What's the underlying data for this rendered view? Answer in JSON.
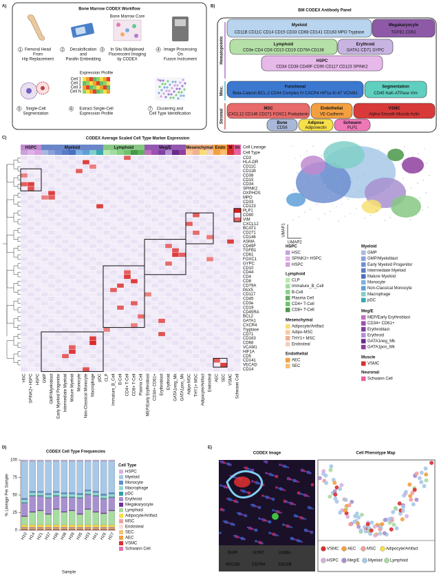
{
  "panel_a": {
    "label": "A)",
    "title": "Bone Marrow CODEX Workflow",
    "core_label": "Bone Marrow Core",
    "profile_label": "Expression Profile",
    "cells": [
      "Cell 1",
      "Cell 2",
      "Cell 3",
      "Cell N"
    ],
    "steps": [
      {
        "number": 1,
        "lines": [
          "Femoral Head",
          "From",
          "Hip Replacement"
        ]
      },
      {
        "number": 2,
        "lines": [
          "Decalcification",
          "and",
          "Parafin Embedding"
        ]
      },
      {
        "number": 3,
        "lines": [
          "In Situ Multiplexed",
          "Fluorescent Imaging",
          "by CODEX"
        ]
      },
      {
        "number": 4,
        "lines": [
          "Image Processing",
          "On",
          "Fusion Instrument"
        ]
      },
      {
        "number": 5,
        "lines": [
          "Single-Cell",
          "Segmentation"
        ]
      },
      {
        "number": 6,
        "lines": [
          "Extract Single-Cell",
          "Expression Profile"
        ]
      },
      {
        "number": 7,
        "lines": [
          "Clustering and",
          "Cell Type Identification"
        ]
      }
    ]
  },
  "panel_b": {
    "label": "B)",
    "title": "BM CODEX Antibody Panel",
    "groups": [
      {
        "label": "Hematopoietic",
        "color": "#9b4fc0"
      },
      {
        "label": "Misc.",
        "color": "#2a9fc9"
      },
      {
        "label": "Stromal",
        "color": "#c0392b"
      }
    ],
    "boxes": [
      {
        "title": "Myeloid",
        "markers": "CD11B CD11C CD14 CD15 CD33 CD68 CD141 CD163 MPO Tryptase",
        "color": "#b9d4ee"
      },
      {
        "title": "Megakaryocyte",
        "markers": "TGFB1 CD61",
        "color": "#8e5aa8"
      },
      {
        "title": "Lymphoid",
        "markers": "CD3e CD4 CD8 CD10 CD19 CD79A CD138",
        "color": "#b5e0a8"
      },
      {
        "title": "Erythroid",
        "markers": "GATA1 CD71 GYPC",
        "color": "#c8b4e0"
      },
      {
        "title": "HSPC",
        "markers": "CD34 CD38 CD49F CD90 CD117 CD123 SPINK2",
        "color": "#e7b8ea"
      },
      {
        "title": "Functional",
        "markers": "Beta-Catenin BCL-2 CD44 Complex IV CXCR4 HIF1α Ki-67 VCAM1",
        "color": "#3b78d0"
      },
      {
        "title": "Segmentation",
        "markers": "CD45 NaK-ATPase Vim",
        "color": "#5fd0c0"
      },
      {
        "title": "MSC",
        "markers": "CXCL12 CD146 CD271 FOXC1 Podoplanin",
        "color": "#e86a6a"
      },
      {
        "title": "Endothelial",
        "markers": "VE-Cadherin",
        "color": "#f4a040"
      },
      {
        "title": "VSMC",
        "markers": "Alpha-Smooth Muscle Actin",
        "color": "#d83a3a"
      },
      {
        "title": "Bone",
        "markers": "CD56",
        "color": "#a9b8d8"
      },
      {
        "title": "Adipose",
        "markers": "Adiponectin",
        "color": "#f6e04a"
      },
      {
        "title": "Schwann",
        "markers": "PLP1",
        "color": "#ef78b8"
      }
    ]
  },
  "panel_c": {
    "label": "C)",
    "title": "CODEX Average Scaled Cell Type Marker Expression",
    "lineage_label": "Cell Lineage",
    "type_label": "Cell Type",
    "umap_x": "UMAP1",
    "umap_y": "UMAP2",
    "lineages": [
      {
        "label": "HSPC",
        "span": 3,
        "color": "#c08ad0"
      },
      {
        "label": "Myeloid",
        "span": 9,
        "color": "#6a86c8"
      },
      {
        "label": "Lymphoid",
        "span": 6,
        "color": "#86c884"
      },
      {
        "label": "Meg/E",
        "span": 6,
        "color": "#9258b0"
      },
      {
        "label": "Mesenchymal",
        "span": 4,
        "color": "#f0b080"
      },
      {
        "label": "Endo",
        "span": 2,
        "color": "#f4a040"
      },
      {
        "label": "M",
        "span": 1,
        "color": "#d83030"
      },
      {
        "label": "Sh",
        "span": 1,
        "color": "#e860a0"
      }
    ],
    "columns": [
      {
        "label": "HSC",
        "color": "#c8a2d8"
      },
      {
        "label": "SPINK2+ HSPC",
        "color": "#e0b0e8"
      },
      {
        "label": "HSPC",
        "color": "#d8a0e0"
      },
      {
        "label": "GMP",
        "color": "#a8b8e0"
      },
      {
        "label": "GMP/Myeloblast",
        "color": "#8aa0d8"
      },
      {
        "label": "Early Myeloid Progenitor",
        "color": "#6f8fd0"
      },
      {
        "label": "Intermediate Myeloid",
        "color": "#5a7cc8"
      },
      {
        "label": "Mature Myeloid",
        "color": "#4a6ec0"
      },
      {
        "label": "Monocyte",
        "color": "#7fb0e0"
      },
      {
        "label": "Non-Classical Monocyte",
        "color": "#5ea0d8"
      },
      {
        "label": "Macrophage",
        "color": "#80d0c8"
      },
      {
        "label": "pDC",
        "color": "#3aa8b0"
      },
      {
        "label": "CLP",
        "color": "#b8e8b0"
      },
      {
        "label": "Immature_B_Cell",
        "color": "#a0dca0"
      },
      {
        "label": "B-Cell",
        "color": "#88d088"
      },
      {
        "label": "CD4+ T-Cell",
        "color": "#70c070"
      },
      {
        "label": "CD8+ T-Cell",
        "color": "#489848"
      },
      {
        "label": "Plasma Cell",
        "color": "#60b060"
      },
      {
        "label": "MEP/Early Erythroblast",
        "color": "#c070c0"
      },
      {
        "label": "CD34+ CD61+",
        "color": "#a050b0"
      },
      {
        "label": "Erythroblast",
        "color": "#8040a0"
      },
      {
        "label": "Erythroid",
        "color": "#b090d0"
      },
      {
        "label": "GATA1neg_Mk",
        "color": "#6a2a8a"
      },
      {
        "label": "GATA1pos_Mk",
        "color": "#8e3e9e"
      },
      {
        "label": "Adipo-MSC",
        "color": "#f8c8a0"
      },
      {
        "label": "THY1+ MSC",
        "color": "#f0b090"
      },
      {
        "label": "Adipocyte/Artifact",
        "color": "#f8e070"
      },
      {
        "label": "Endosteal",
        "color": "#f0d0c0"
      },
      {
        "label": "AEC",
        "color": "#f4a040"
      },
      {
        "label": "SEC",
        "color": "#f8c070"
      },
      {
        "label": "VSMC",
        "color": "#d83030"
      },
      {
        "label": "Schwann Cell",
        "color": "#e860a0"
      }
    ],
    "rows": [
      "CD3",
      "HLA-DR",
      "CD11C",
      "CD11B",
      "CD38",
      "CD15",
      "CD34",
      "SPINK2",
      "OXPHOS",
      "MPO",
      "CD33",
      "CD123",
      "PLP1",
      "CD90",
      "VIM",
      "CXCL12",
      "BCAT1",
      "CD271",
      "CD146",
      "ASMA",
      "CD49F",
      "TGFB1",
      "CD61",
      "FOXC1",
      "GYPC",
      "CD10",
      "CD44",
      "CD4",
      "CD8",
      "CD79A",
      "PAX5",
      "CD117",
      "CD45",
      "CD3e",
      "CD19",
      "CD45RA",
      "BCL2",
      "GATA1",
      "CXCR4",
      "Tryptase",
      "CD71",
      "CD163",
      "CD68",
      "VCAM1",
      "HIF1A",
      "CD5",
      "CD141",
      "VECAD",
      "CD14"
    ],
    "cells": [
      [
        6,
        0,
        2
      ],
      [
        6,
        1,
        2.5
      ],
      [
        7,
        1,
        2.2
      ],
      [
        4,
        0,
        1.5
      ],
      [
        8,
        4,
        2.5
      ],
      [
        9,
        4,
        2
      ],
      [
        9,
        3,
        1.5
      ],
      [
        3,
        8,
        2
      ],
      [
        1,
        9,
        2.5
      ],
      [
        0,
        15,
        2
      ],
      [
        11,
        11,
        2.5
      ],
      [
        2,
        10,
        1.5
      ],
      [
        13,
        25,
        2
      ],
      [
        15,
        24,
        2
      ],
      [
        17,
        25,
        1.8
      ],
      [
        18,
        27,
        1.6
      ],
      [
        19,
        30,
        2.5
      ],
      [
        12,
        31,
        3
      ],
      [
        14,
        31,
        2
      ],
      [
        20,
        21,
        1.8
      ],
      [
        21,
        22,
        2.2
      ],
      [
        22,
        22,
        2.5
      ],
      [
        22,
        23,
        2
      ],
      [
        23,
        27,
        1.5
      ],
      [
        24,
        21,
        1.8
      ],
      [
        26,
        15,
        2
      ],
      [
        27,
        15,
        2.5
      ],
      [
        28,
        16,
        2.5
      ],
      [
        29,
        14,
        2.3
      ],
      [
        30,
        13,
        2
      ],
      [
        31,
        18,
        1.5
      ],
      [
        33,
        16,
        2
      ],
      [
        34,
        14,
        2
      ],
      [
        37,
        20,
        2
      ],
      [
        40,
        20,
        2.2
      ],
      [
        41,
        10,
        2.5
      ],
      [
        42,
        10,
        2.8
      ],
      [
        43,
        7,
        2
      ],
      [
        44,
        7,
        2.6
      ],
      [
        45,
        6,
        2
      ],
      [
        46,
        28,
        2
      ],
      [
        47,
        29,
        2.5
      ],
      [
        48,
        9,
        2.2
      ],
      [
        39,
        12,
        1.5
      ],
      [
        36,
        17,
        1.8
      ],
      [
        38,
        16,
        1.5
      ]
    ],
    "legend": [
      {
        "title": "HSPC",
        "items": [
          [
            "HSC",
            "#c8a2d8"
          ],
          [
            "SPINK2+ HSPC",
            "#e0b0e8"
          ],
          [
            "HSPC",
            "#d8a0e0"
          ]
        ]
      },
      {
        "title": "Lymphoid",
        "items": [
          [
            "CLP",
            "#b8e8b0"
          ],
          [
            "Immature_B_Cell",
            "#a0dca0"
          ],
          [
            "B-Cell",
            "#88d088"
          ],
          [
            "Plasma Cell",
            "#60b060"
          ],
          [
            "CD4+ T-Cell",
            "#70c070"
          ],
          [
            "CD8+ T-Cell",
            "#489848"
          ]
        ]
      },
      {
        "title": "Mesenchymal",
        "items": [
          [
            "Adipocyte/Artifact",
            "#f8e070"
          ],
          [
            "Adipo-MSC",
            "#f8c8a0"
          ],
          [
            "THY1+ MSC",
            "#f0b090"
          ],
          [
            "Endosteal",
            "#f0d0c0"
          ]
        ]
      },
      {
        "title": "Endothelial",
        "items": [
          [
            "AEC",
            "#f4a040"
          ],
          [
            "SEC",
            "#f8c070"
          ]
        ]
      },
      {
        "title": "Myeloid",
        "items": [
          [
            "GMP",
            "#a8b8e0"
          ],
          [
            "GMP/Myeloblast",
            "#8aa0d8"
          ],
          [
            "Early Myeloid Progenitor",
            "#6f8fd0"
          ],
          [
            "Intermediate Myeloid",
            "#5a7cc8"
          ],
          [
            "Mature Myeloid",
            "#4a6ec0"
          ],
          [
            "Monocyte",
            "#7fb0e0"
          ],
          [
            "Non-Classical Monocyte",
            "#5ea0d8"
          ],
          [
            "Macrophage",
            "#80d0c8"
          ],
          [
            "pDC",
            "#3aa8b0"
          ]
        ]
      },
      {
        "title": "Meg/E",
        "items": [
          [
            "MEP/Early Erythroblast",
            "#c070c0"
          ],
          [
            "CD34+ CD61+",
            "#a050b0"
          ],
          [
            "Erythroblast",
            "#8040a0"
          ],
          [
            "Erythroid",
            "#b090d0"
          ],
          [
            "GATA1neg_Mk",
            "#6a2a8a"
          ],
          [
            "GATA1pos_Mk",
            "#8e3e9e"
          ]
        ]
      },
      {
        "title": "Muscle",
        "items": [
          [
            "VSMC",
            "#d83030"
          ]
        ]
      },
      {
        "title": "Neuronal",
        "items": [
          [
            "Schwann Cell",
            "#e860a0"
          ]
        ]
      }
    ]
  },
  "chart_data": {
    "type": "bar",
    "stacked": true,
    "panel_label": "D)",
    "title": "CODEX Cell Type Frequencies",
    "ylabel": "% Lineage Per Sample",
    "xlabel": "Sample",
    "legend_title": "Cell Type",
    "categories": [
      "H10",
      "H14",
      "H21",
      "H37",
      "H36",
      "H38",
      "H39",
      "H35",
      "H33",
      "H41",
      "H26",
      "H27"
    ],
    "ylim": [
      0,
      100
    ],
    "yticks": [
      0,
      25,
      50,
      75,
      100
    ],
    "series": [
      {
        "name": "HSPC",
        "color": "#d8b0e0",
        "values": [
          1.5,
          1.5,
          1.5,
          1.5,
          1.5,
          1.5,
          1.5,
          1.5,
          1.5,
          1.5,
          1.5,
          1.5
        ]
      },
      {
        "name": "Myeloid",
        "color": "#a8c8e8",
        "values": [
          53,
          43,
          43,
          46,
          43,
          45,
          45,
          46,
          41,
          43,
          47,
          45
        ]
      },
      {
        "name": "Monocyte",
        "color": "#6090d0",
        "values": [
          2,
          2,
          2,
          2,
          2,
          2,
          2,
          2,
          2,
          2,
          2,
          2
        ]
      },
      {
        "name": "Macrophage",
        "color": "#90d8d0",
        "values": [
          4,
          4,
          4,
          4,
          4,
          4,
          4,
          4,
          4,
          4,
          4,
          4
        ]
      },
      {
        "name": "pDC",
        "color": "#30a0a8",
        "values": [
          1,
          1,
          1,
          1,
          1,
          1,
          1,
          1,
          1,
          1,
          1,
          1
        ]
      },
      {
        "name": "Erythroid",
        "color": "#a890d0",
        "values": [
          18,
          22,
          20,
          22,
          18,
          20,
          18,
          22,
          20,
          22,
          20,
          18
        ]
      },
      {
        "name": "Megakaryocyte",
        "color": "#7030a0",
        "values": [
          1,
          1,
          1,
          1,
          1,
          1,
          1,
          1,
          1,
          1,
          1,
          1
        ]
      },
      {
        "name": "Lymphoid",
        "color": "#a8dca0",
        "values": [
          12,
          18,
          20,
          15,
          22,
          18,
          20,
          15,
          22,
          18,
          16,
          20
        ]
      },
      {
        "name": "Adipocyte/Artifact",
        "color": "#f8e040",
        "values": [
          3,
          3,
          3,
          3,
          3,
          3,
          3,
          3,
          3,
          3,
          3,
          3
        ]
      },
      {
        "name": "MSC",
        "color": "#f0a0a0",
        "values": [
          1,
          1,
          1,
          1,
          1,
          1,
          1,
          1,
          1,
          1,
          1,
          1
        ]
      },
      {
        "name": "Endosteal",
        "color": "#f8e0d0",
        "values": [
          0.5,
          0.5,
          0.5,
          0.5,
          0.5,
          0.5,
          0.5,
          0.5,
          0.5,
          0.5,
          0.5,
          0.5
        ]
      },
      {
        "name": "SEC",
        "color": "#f8c070",
        "values": [
          1,
          1,
          1,
          1,
          1,
          1,
          1,
          1,
          1,
          1,
          1,
          1
        ]
      },
      {
        "name": "AEC",
        "color": "#f4a040",
        "values": [
          1,
          1,
          1,
          1,
          1,
          1,
          1,
          1,
          1,
          1,
          1,
          1
        ]
      },
      {
        "name": "VSMC",
        "color": "#d83030",
        "values": [
          0.5,
          0.5,
          0.5,
          0.5,
          0.5,
          0.5,
          0.5,
          0.5,
          0.5,
          0.5,
          0.5,
          0.5
        ]
      },
      {
        "name": "Schwann Cell",
        "color": "#e870b0",
        "values": [
          0.5,
          0.5,
          0.5,
          0.5,
          0.5,
          0.5,
          0.5,
          0.5,
          0.5,
          0.5,
          0.5,
          0.5
        ]
      }
    ]
  },
  "panel_e": {
    "label": "E)",
    "image_title": "CODEX Image",
    "map_title": "Cell Phenotype Map",
    "channels": [
      {
        "label": "DAPI",
        "color": "#3b8fe0"
      },
      {
        "label": "GYPC",
        "color": "#e03030"
      },
      {
        "label": "ASMA",
        "color": "#7fd0f0"
      },
      {
        "label": "VECAD",
        "color": "#f0e020"
      },
      {
        "label": "CD79A",
        "color": "#40c040"
      },
      {
        "label": "CD11B",
        "color": "#ffffff"
      }
    ],
    "map_legend": [
      {
        "label": "VSMC",
        "color": "#d83030"
      },
      {
        "label": "AEC",
        "color": "#f4a040"
      },
      {
        "label": "MSC",
        "color": "#f0a0a0"
      },
      {
        "label": "Adipocyte/Artifact",
        "color": "#f8e040"
      },
      {
        "label": "HSPC",
        "color": "#d8b0e0"
      },
      {
        "label": "Meg/E",
        "color": "#a890d0"
      },
      {
        "label": "Myeloid",
        "color": "#a8c8e8"
      },
      {
        "label": "Lymphoid",
        "color": "#a8dca0"
      }
    ]
  }
}
